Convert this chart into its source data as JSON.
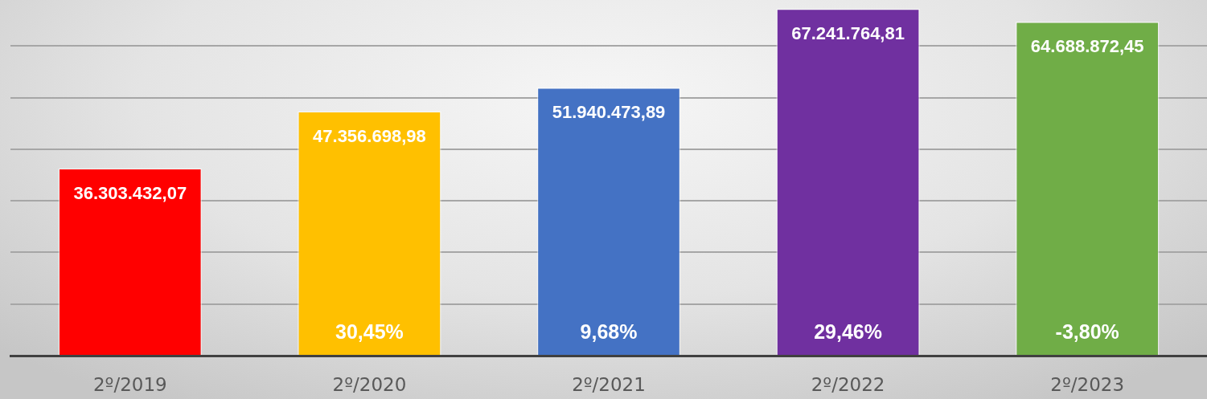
{
  "chart_data": {
    "type": "bar",
    "categories": [
      "2º/2019",
      "2º/2020",
      "2º/2021",
      "2º/2022",
      "2º/2023"
    ],
    "values": [
      36303432.07,
      47356698.98,
      51940473.89,
      67241764.81,
      64688872.45
    ],
    "colors": [
      "#ff0000",
      "#ffc000",
      "#4472c4",
      "#7030a0",
      "#70ad47"
    ],
    "value_labels": [
      "36.303.432,07",
      "47.356.698,98",
      "51.940.473,89",
      "67.241.764,81",
      "64.688.872,45"
    ],
    "ylim": [
      0,
      68900000
    ],
    "yticks": [
      {
        "value": 0,
        "label": null
      },
      {
        "value": 10000000,
        "label": null
      },
      {
        "value": 20000000,
        "label": null
      },
      {
        "value": 30000000,
        "label": null
      },
      {
        "value": 40000000,
        "label": null
      },
      {
        "value": 50000000,
        "label": null
      },
      {
        "value": 60000000,
        "label": null
      }
    ],
    "grid": "y",
    "tick_labels": "x",
    "annotations": [
      "30,45%",
      "9,68%",
      "29,46%",
      "-3,80%"
    ]
  }
}
